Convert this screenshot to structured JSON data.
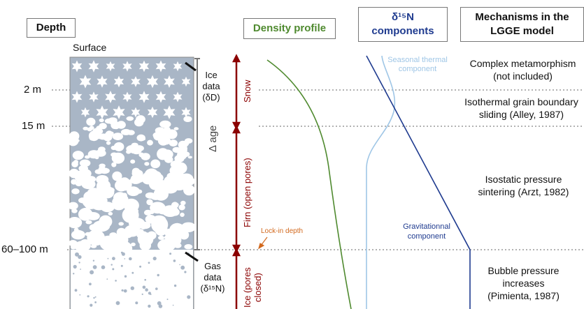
{
  "headers": {
    "depth": "Depth",
    "density": "Density profile",
    "d15n_line1": "δ¹⁵N",
    "d15n_line2": "components",
    "mech_line1": "Mechanisms in the",
    "mech_line2": "LGGE model"
  },
  "surface_label": "Surface",
  "depth_marks": [
    "2 m",
    "15 m",
    "60–100 m"
  ],
  "ice_data": [
    "Ice",
    "data",
    "(δD)"
  ],
  "gas_data": [
    "Gas",
    "data",
    "(δ¹⁵N)"
  ],
  "delta_age": "Δ age",
  "zones": {
    "snow": "Snow",
    "firn": "Firn (open pores)",
    "ice_line1": "Ice (pores",
    "ice_line2": "closed)"
  },
  "lock_in": "Lock-in depth",
  "seasonal": [
    "Seasonal thermal",
    "component"
  ],
  "gravitational": [
    "Gravitationnal",
    "component"
  ],
  "mechanisms": [
    [
      "Complex metamorphism",
      "(not included)"
    ],
    [
      "Isothermal grain boundary",
      "sliding (Alley, 1987)"
    ],
    [
      "Isostatic pressure",
      "sintering (Arzt, 1982)"
    ],
    [
      "Bubble pressure",
      "increases",
      "(Pimienta, 1987)"
    ]
  ],
  "colors": {
    "column": "#a9b6c6",
    "zone_red": "#8b0000",
    "density_green": "#4f8a2f",
    "d15n_blue": "#1f3b8f",
    "seasonal_light_blue": "#9fc6e6",
    "lock_in_orange": "#d2691e",
    "dashed_gray": "#666666"
  }
}
